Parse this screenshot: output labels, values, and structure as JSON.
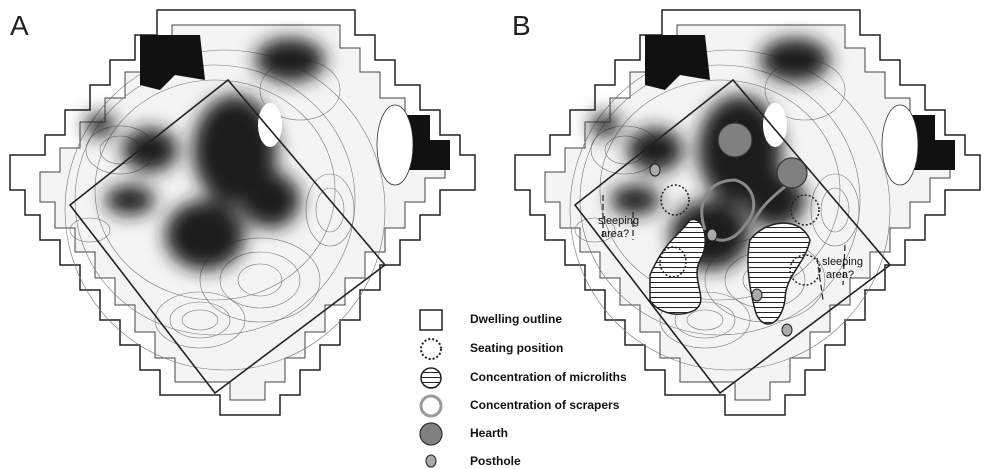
{
  "panels": [
    {
      "label": "A"
    },
    {
      "label": "B",
      "annotations": [
        [
          "sleeping",
          "area?"
        ],
        [
          "sleeping",
          "area?"
        ]
      ]
    }
  ],
  "legend": [
    {
      "label": "Dwelling outline"
    },
    {
      "label": "Seating position"
    },
    {
      "label": "Concentration of microliths"
    },
    {
      "label": "Concentration of scrapers"
    },
    {
      "label": "Hearth"
    },
    {
      "label": "Posthole"
    }
  ]
}
